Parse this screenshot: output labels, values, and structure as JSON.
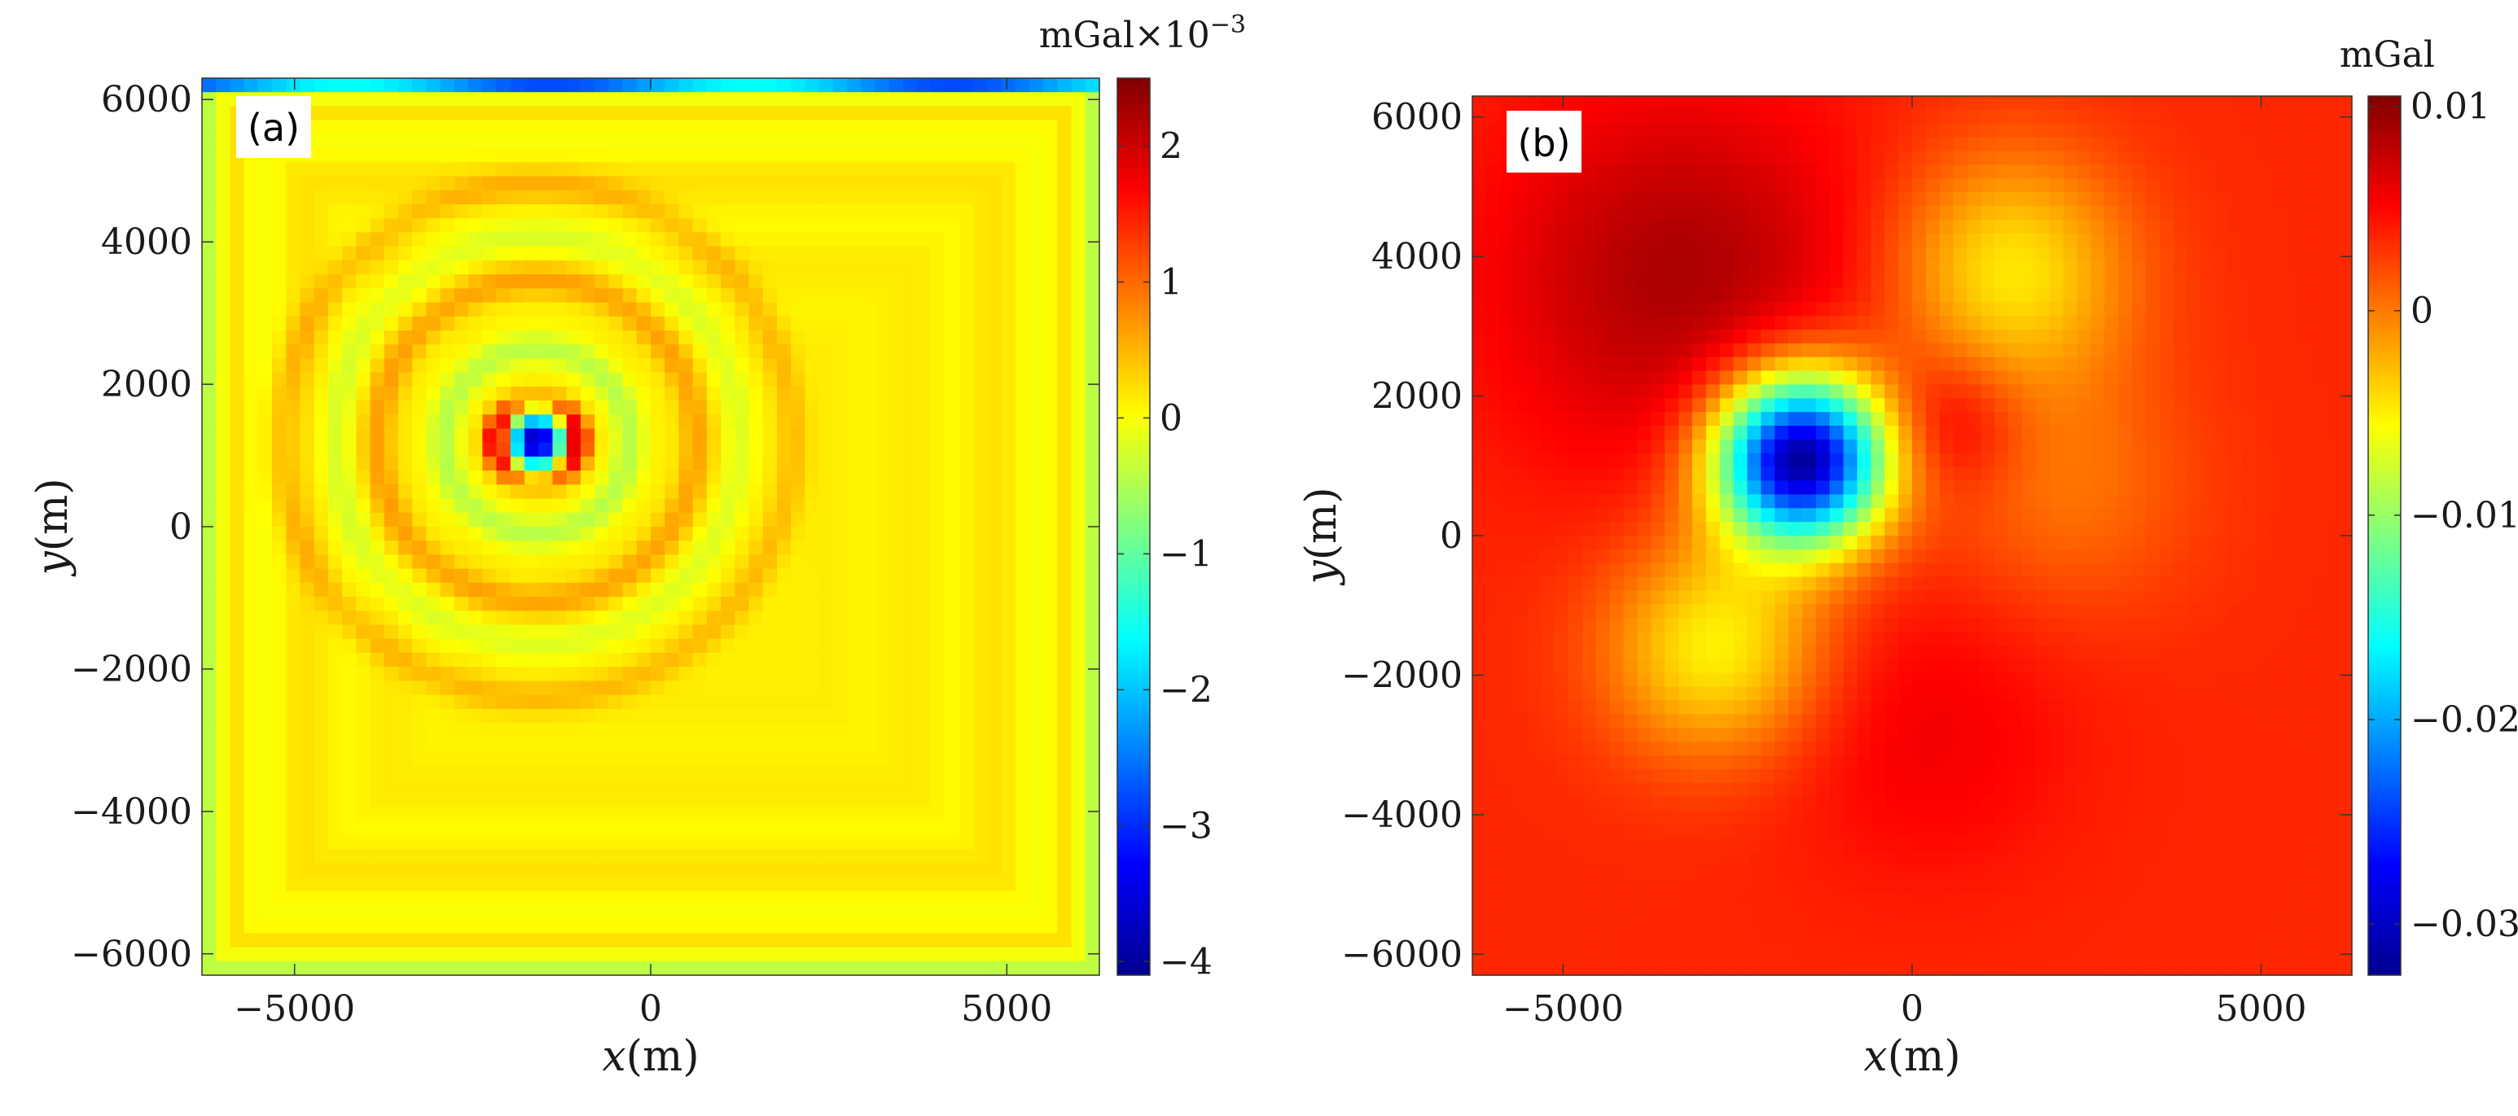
{
  "chart_data": [
    {
      "type": "heatmap",
      "panel_label": "(a)",
      "xlabel_var": "x",
      "xlabel_unit": "(m)",
      "ylabel_var": "y",
      "ylabel_unit": "(m)",
      "xlim": [
        -6300,
        6300
      ],
      "ylim": [
        -6300,
        6300
      ],
      "xticks": [
        -5000,
        0,
        5000
      ],
      "xtick_labels": [
        "−5000",
        "0",
        "5000"
      ],
      "yticks": [
        6000,
        4000,
        2000,
        0,
        -2000,
        -4000,
        -6000
      ],
      "ytick_labels": [
        "6000",
        "4000",
        "2000",
        "0",
        "−2000",
        "−4000",
        "−6000"
      ],
      "colorbar": {
        "unit_label": "mGal×10",
        "unit_exponent": "−3",
        "range": [
          -4.1,
          2.5
        ],
        "ticks": [
          2,
          1,
          0,
          -1,
          -2,
          -3,
          -4
        ],
        "tick_labels": [
          "2",
          "1",
          "0",
          "−1",
          "−2",
          "−3",
          "−4"
        ],
        "colormap": "jet"
      },
      "field": {
        "grid": 64,
        "background": 0.12,
        "anomaly_center_xy": [
          -1600,
          1200
        ],
        "anomaly_peak": -4.0,
        "anomaly_positive_lobe": 2.3,
        "rings": [
          {
            "radius": 1300,
            "amplitude": -0.55
          },
          {
            "radius": 2250,
            "amplitude": 0.5
          },
          {
            "radius": 2850,
            "amplitude": -0.3
          },
          {
            "radius": 3600,
            "amplitude": 0.35
          }
        ],
        "edge_stripe_amplitude": -1.1,
        "top_edge_value": -2.2
      }
    },
    {
      "type": "heatmap",
      "panel_label": "(b)",
      "xlabel_var": "x",
      "xlabel_unit": "(m)",
      "ylabel_var": "y",
      "ylabel_unit": "(m)",
      "xlim": [
        -6300,
        6300
      ],
      "ylim": [
        -6300,
        6300
      ],
      "xticks": [
        -5000,
        0,
        5000
      ],
      "xtick_labels": [
        "−5000",
        "0",
        "5000"
      ],
      "yticks": [
        6000,
        4000,
        2000,
        0,
        -2000,
        -4000,
        -6000
      ],
      "ytick_labels": [
        "6000",
        "4000",
        "2000",
        "0",
        "−2000",
        "−4000",
        "−6000"
      ],
      "colorbar": {
        "unit_label": "mGal",
        "range": [
          -0.0325,
          0.0105
        ],
        "ticks": [
          0.01,
          0,
          -0.01,
          -0.02,
          -0.03
        ],
        "tick_labels": [
          "0.01",
          "0",
          "−0.01",
          "−0.02",
          "−0.03"
        ],
        "colormap": "jet"
      },
      "field": {
        "grid": 64,
        "background": 0.0035,
        "features": [
          {
            "x": -1600,
            "y": 1100,
            "sigma": 850,
            "amp": -0.036
          },
          {
            "x": -3300,
            "y": 3700,
            "sigma": 1900,
            "amp": 0.0052
          },
          {
            "x": 1400,
            "y": 3800,
            "sigma": 1200,
            "amp": -0.0082
          },
          {
            "x": 600,
            "y": 1600,
            "sigma": 700,
            "amp": 0.0035
          },
          {
            "x": -2800,
            "y": -1600,
            "sigma": 1100,
            "amp": -0.0088
          },
          {
            "x": 2200,
            "y": 700,
            "sigma": 1300,
            "amp": -0.0032
          },
          {
            "x": 200,
            "y": -2800,
            "sigma": 1500,
            "amp": 0.0022
          }
        ]
      }
    }
  ]
}
